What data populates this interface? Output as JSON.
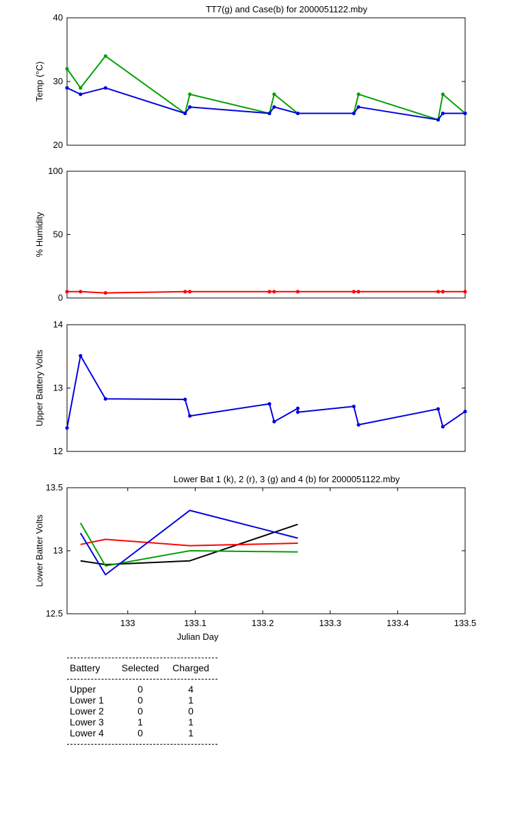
{
  "chart_data": [
    {
      "type": "line",
      "title": "TT7(g) and Case(b) for 2000051122.mby",
      "xlabel": "",
      "ylabel": "Temp  (°C)",
      "xlim": [
        132.91,
        133.5
      ],
      "ylim": [
        20,
        40
      ],
      "yticks": [
        "20",
        "30",
        "40"
      ],
      "xticks": [],
      "grid": false,
      "series": [
        {
          "color": "#00a000",
          "markers": true,
          "x": [
            132.91,
            132.93,
            132.967,
            133.085,
            133.092,
            133.21,
            133.217,
            133.252,
            133.335,
            133.342,
            133.46,
            133.467,
            133.5
          ],
          "y": [
            32,
            29,
            34,
            25,
            28,
            25,
            28,
            25,
            25,
            28,
            24,
            28,
            25
          ]
        },
        {
          "color": "#0000e0",
          "markers": true,
          "x": [
            132.91,
            132.93,
            132.967,
            133.085,
            133.092,
            133.21,
            133.217,
            133.252,
            133.335,
            133.342,
            133.46,
            133.467,
            133.5
          ],
          "y": [
            29,
            28,
            29,
            25,
            26,
            25,
            26,
            25,
            25,
            26,
            24,
            25,
            25
          ]
        }
      ]
    },
    {
      "type": "line",
      "title": "",
      "xlabel": "",
      "ylabel": "% Humidity",
      "xlim": [
        132.91,
        133.5
      ],
      "ylim": [
        0,
        100
      ],
      "yticks": [
        "0",
        "50",
        "100"
      ],
      "xticks": [],
      "grid": false,
      "series": [
        {
          "color": "#ff0000",
          "markers": true,
          "x": [
            132.91,
            132.93,
            132.967,
            133.085,
            133.092,
            133.21,
            133.217,
            133.252,
            133.335,
            133.342,
            133.46,
            133.467,
            133.5
          ],
          "y": [
            5,
            5,
            4,
            5,
            5,
            5,
            5,
            5,
            5,
            5,
            5,
            5,
            5
          ]
        }
      ]
    },
    {
      "type": "line",
      "title": "",
      "xlabel": "",
      "ylabel": "Upper Battery Volts",
      "xlim": [
        132.91,
        133.5
      ],
      "ylim": [
        12,
        14
      ],
      "yticks": [
        "12",
        "13",
        "14"
      ],
      "xticks": [],
      "grid": false,
      "series": [
        {
          "color": "#0000e0",
          "markers": true,
          "x": [
            132.91,
            132.93,
            132.967,
            133.085,
            133.092,
            133.21,
            133.217,
            133.252,
            133.252,
            133.335,
            133.342,
            133.46,
            133.467,
            133.5
          ],
          "y": [
            12.37,
            13.51,
            12.83,
            12.82,
            12.56,
            12.75,
            12.47,
            12.68,
            12.62,
            12.71,
            12.42,
            12.67,
            12.39,
            12.63
          ]
        }
      ]
    },
    {
      "type": "line",
      "title": "Lower Bat 1 (k), 2 (r), 3 (g) and 4 (b) for 2000051122.mby",
      "xlabel": "Julian Day",
      "ylabel": "Lower Batter Volts",
      "xlim": [
        132.91,
        133.5
      ],
      "ylim": [
        12.5,
        13.5
      ],
      "yticks": [
        "12.5",
        "13",
        "13.5"
      ],
      "xticks": [
        "133",
        "133.1",
        "133.2",
        "133.3",
        "133.4",
        "133.5"
      ],
      "grid": false,
      "series": [
        {
          "color": "#000000",
          "markers": false,
          "x": [
            132.93,
            132.967,
            133.092,
            133.252
          ],
          "y": [
            12.92,
            12.89,
            12.92,
            13.21
          ]
        },
        {
          "color": "#ff0000",
          "markers": false,
          "x": [
            132.93,
            132.967,
            133.092,
            133.252
          ],
          "y": [
            13.05,
            13.09,
            13.04,
            13.06
          ]
        },
        {
          "color": "#00a000",
          "markers": false,
          "x": [
            132.93,
            132.967,
            133.092,
            133.252
          ],
          "y": [
            13.22,
            12.88,
            13.0,
            12.99
          ]
        },
        {
          "color": "#0000e0",
          "markers": false,
          "x": [
            132.93,
            132.967,
            133.092,
            133.252
          ],
          "y": [
            13.14,
            12.81,
            13.32,
            13.1
          ]
        }
      ]
    }
  ],
  "table": {
    "headers": [
      "Battery",
      "Selected",
      "Charged"
    ],
    "rows": [
      [
        "Upper",
        "0",
        "4"
      ],
      [
        "Lower 1",
        "0",
        "1"
      ],
      [
        "Lower 2",
        "0",
        "0"
      ],
      [
        "Lower 3",
        "1",
        "1"
      ],
      [
        "Lower 4",
        "0",
        "1"
      ]
    ]
  }
}
